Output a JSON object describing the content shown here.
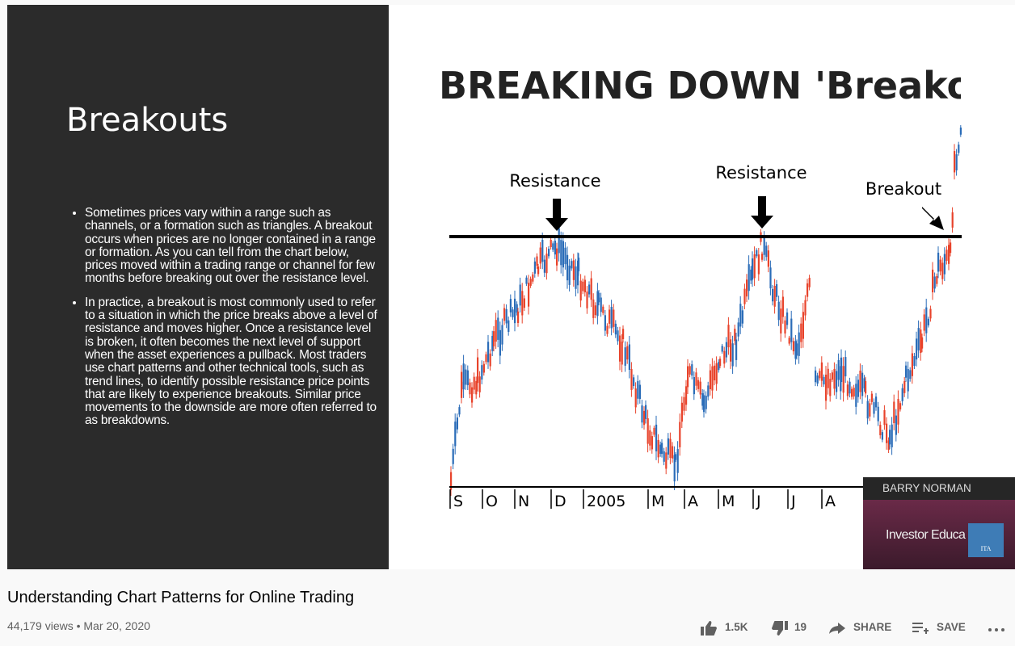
{
  "video": {
    "slide": {
      "title": "Breakouts",
      "bullets": [
        "Sometimes prices vary within a range such as channels, or a formation such as triangles. A breakout occurs when prices are no longer contained in a range or formation. As you can tell from the chart below, prices moved within a trading range or channel for few months before breaking out over the resistance level.",
        "In practice, a breakout is most commonly used to refer to a situation in which the price breaks above a level of resistance and moves higher. Once a resistance level is broken, it often becomes the next level of support when the asset experiences a pullback. Most traders use chart patterns and other technical tools, such as trend lines, to identify possible resistance price points that are likely to experience breakouts. Similar price movements to the downside are more often referred to as breakdowns."
      ]
    },
    "image": {
      "heading": "BREAKING DOWN 'Breakou",
      "annotations": [
        "Resistance",
        "Resistance",
        "Breakout"
      ],
      "axis_labels": [
        "S",
        "O",
        "N",
        "D",
        "2005",
        "M",
        "A",
        "M",
        "J",
        "J",
        "A"
      ]
    },
    "overlay": {
      "name": "BARRY NORMAN",
      "brand": "Investor Educa",
      "logo": "ITA"
    }
  },
  "title": "Understanding Chart Patterns for Online Trading",
  "meta": "44,179 views • Mar 20, 2020",
  "actions": {
    "like": "1.5K",
    "dislike": "19",
    "share": "SHARE",
    "save": "SAVE"
  }
}
